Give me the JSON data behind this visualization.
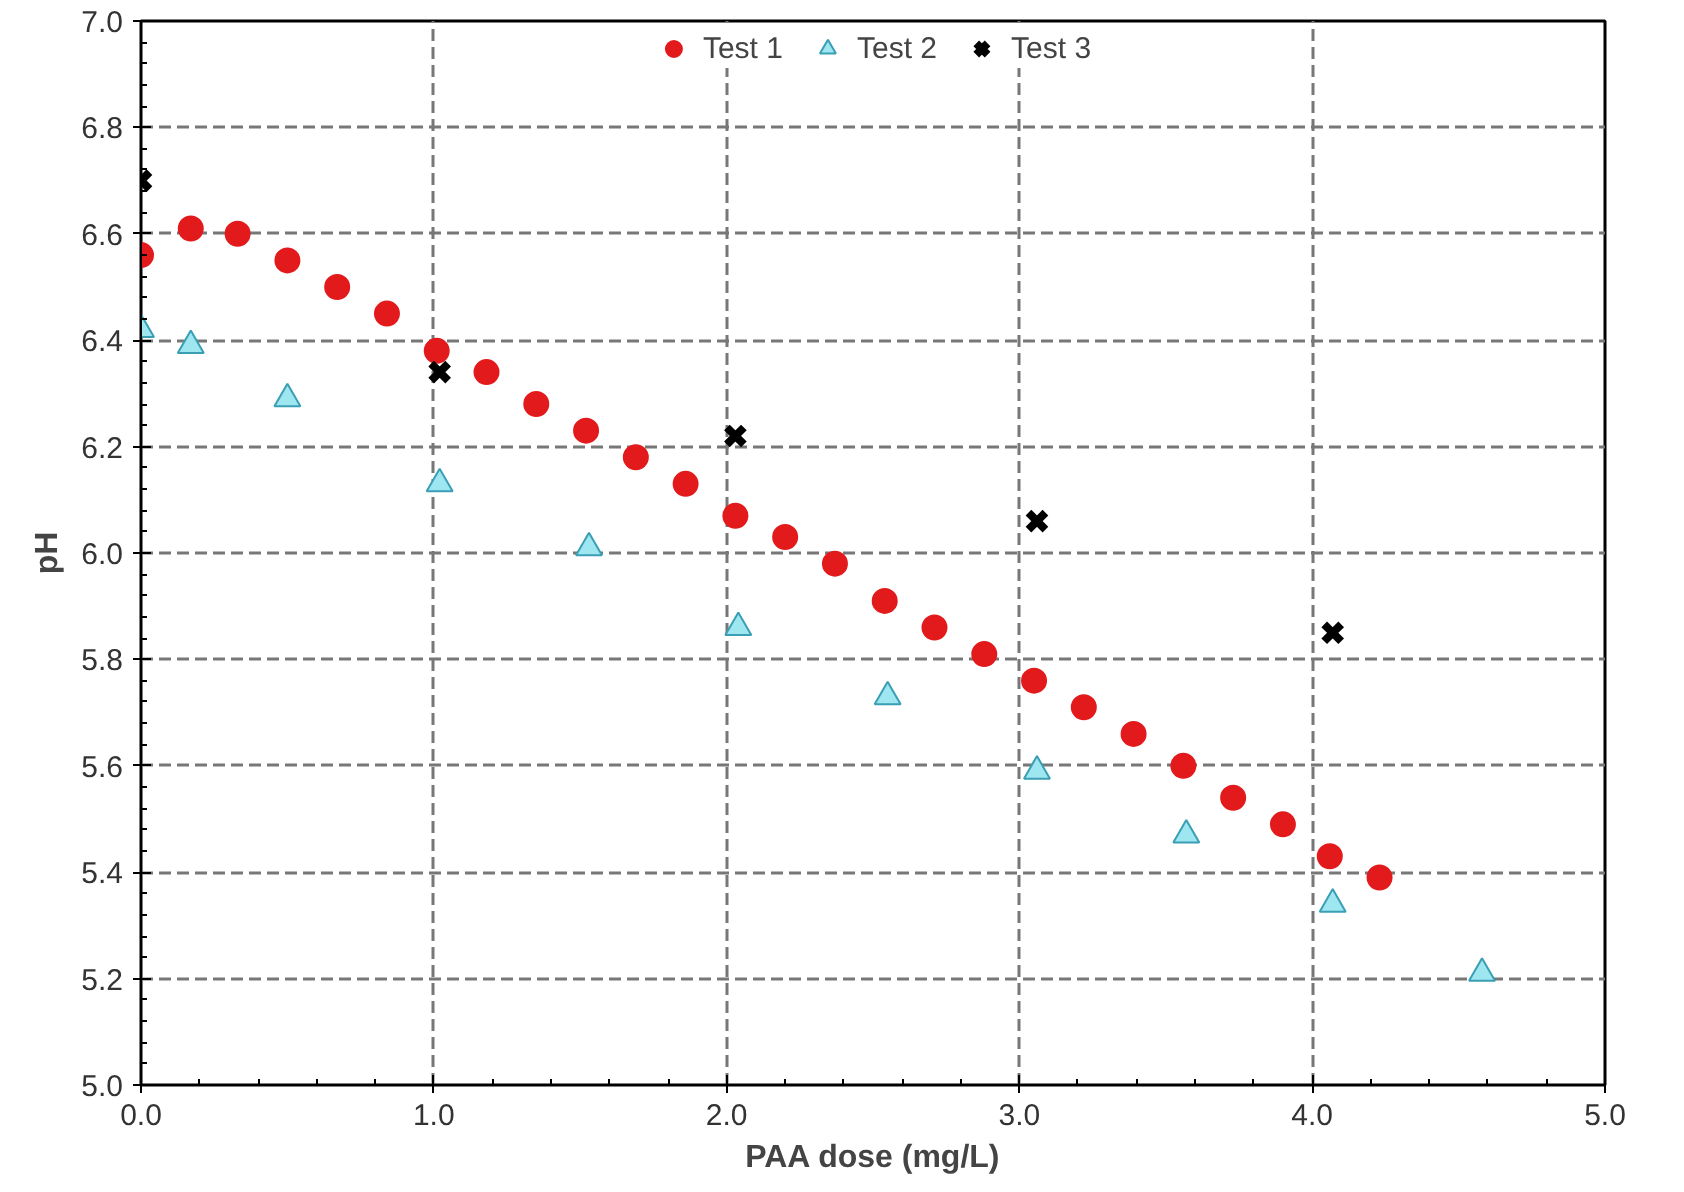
{
  "chart_data": {
    "type": "scatter",
    "xlabel": "PAA dose (mg/L)",
    "ylabel": "pH",
    "xlim": [
      0,
      5
    ],
    "ylim": [
      5,
      7
    ],
    "xticks": [
      {
        "value": 0,
        "label": "0.0"
      },
      {
        "value": 1,
        "label": "1.0"
      },
      {
        "value": 2,
        "label": "2.0"
      },
      {
        "value": 3,
        "label": "3.0"
      },
      {
        "value": 4,
        "label": "4.0"
      },
      {
        "value": 5,
        "label": "5.0"
      }
    ],
    "yticks": [
      {
        "value": 5,
        "label": "5.0"
      },
      {
        "value": 5.2,
        "label": "5.2"
      },
      {
        "value": 5.4,
        "label": "5.4"
      },
      {
        "value": 5.6,
        "label": "5.6"
      },
      {
        "value": 5.8,
        "label": "5.8"
      },
      {
        "value": 6,
        "label": "6.0"
      },
      {
        "value": 6.2,
        "label": "6.2"
      },
      {
        "value": 6.4,
        "label": "6.4"
      },
      {
        "value": 6.6,
        "label": "6.6"
      },
      {
        "value": 6.8,
        "label": "6.8"
      },
      {
        "value": 7,
        "label": "7.0"
      }
    ],
    "grid": true,
    "legend": "top",
    "series": [
      {
        "name": "Test 1",
        "color": "#e31a1c",
        "marker": "circle",
        "x": [
          0,
          0.17,
          0.33,
          0.5,
          0.67,
          0.84,
          1.01,
          1.18,
          1.35,
          1.52,
          1.69,
          1.86,
          2.03,
          2.2,
          2.37,
          2.54,
          2.71,
          2.88,
          3.05,
          3.22,
          3.39,
          3.56,
          3.73,
          3.9,
          4.06,
          4.23
        ],
        "values": [
          6.56,
          6.61,
          6.6,
          6.55,
          6.5,
          6.45,
          6.38,
          6.34,
          6.28,
          6.23,
          6.18,
          6.13,
          6.07,
          6.03,
          5.98,
          5.91,
          5.86,
          5.81,
          5.76,
          5.71,
          5.66,
          5.6,
          5.54,
          5.49,
          5.43,
          5.39
        ]
      },
      {
        "name": "Test 2",
        "color": "#9ee6f0",
        "marker": "triangle",
        "x": [
          0,
          0.17,
          0.5,
          1.02,
          1.53,
          2.04,
          2.55,
          3.06,
          3.57,
          4.07,
          4.58
        ],
        "values": [
          6.42,
          6.39,
          6.29,
          6.13,
          6.01,
          5.86,
          5.73,
          5.59,
          5.47,
          5.34,
          5.21
        ]
      },
      {
        "name": "Test 3",
        "color": "#000000",
        "marker": "cross",
        "x": [
          0,
          1.02,
          2.03,
          3.06,
          4.07
        ],
        "values": [
          6.7,
          6.34,
          6.22,
          6.06,
          5.85
        ]
      }
    ]
  }
}
